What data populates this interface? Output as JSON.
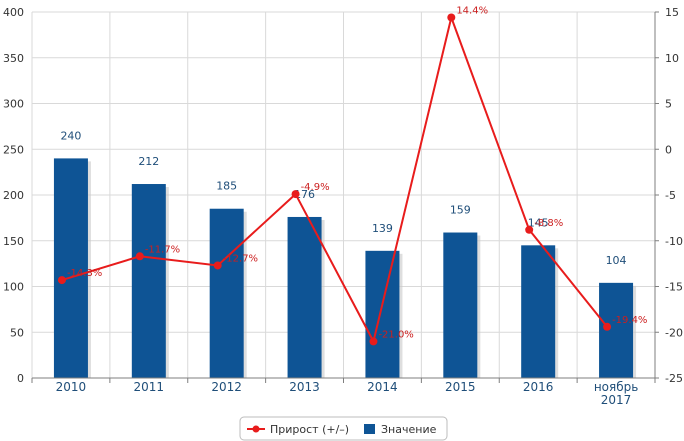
{
  "colors": {
    "bar": "#0e5495",
    "bar_shadow": "#c8c8c8",
    "line": "#e81c1c",
    "grid": "#d9d9d9",
    "axis": "#7f7f7f"
  },
  "legend": {
    "line_label": "Прирост (+/–)",
    "bar_label": "Значение"
  },
  "chart_data": {
    "type": "bar+line",
    "categories": [
      "2010",
      "2011",
      "2012",
      "2013",
      "2014",
      "2015",
      "2016",
      "ноябрь 2017"
    ],
    "series": [
      {
        "name": "Значение",
        "type": "bar",
        "axis": "left",
        "values": [
          240,
          212,
          185,
          176,
          139,
          159,
          145,
          104
        ],
        "labels": [
          "240",
          "212",
          "185",
          "176",
          "139",
          "159",
          "145",
          "104"
        ]
      },
      {
        "name": "Прирост (+/–)",
        "type": "line",
        "axis": "right",
        "values": [
          -14.3,
          -11.7,
          -12.7,
          -4.9,
          -21.0,
          14.4,
          -8.8,
          -19.4
        ],
        "labels": [
          "-14.3%",
          "-11.7%",
          "-12.7%",
          "-4.9%",
          "-21.0%",
          "14.4%",
          "-8.8%",
          "-19.4%"
        ]
      }
    ],
    "y_left": {
      "lim": [
        0,
        400
      ],
      "ticks": [
        "0",
        "50",
        "100",
        "150",
        "200",
        "250",
        "300",
        "350",
        "400"
      ]
    },
    "y_right": {
      "lim": [
        -25,
        15
      ],
      "ticks": [
        "-25",
        "-20",
        "-15",
        "-10",
        "-5",
        "0",
        "5",
        "10",
        "15"
      ]
    },
    "grid": true,
    "legend_position": "bottom-center"
  }
}
